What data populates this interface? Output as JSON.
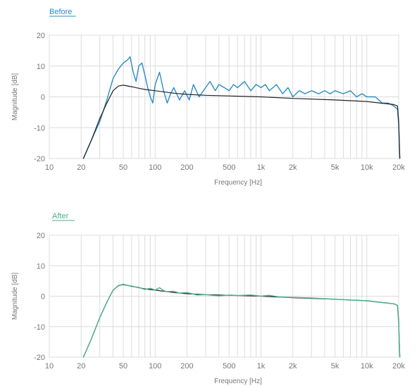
{
  "colors": {
    "before_series": "#2b8cc4",
    "after_series": "#4caf8a",
    "target_curve": "#222222",
    "grid": "#dcdcdc",
    "axis_text": "#777777"
  },
  "chart_data": [
    {
      "type": "line",
      "title": "Before",
      "xlabel": "Frequency [Hz]",
      "ylabel": "Magnitude [dB]",
      "xscale": "log",
      "xlim": [
        10,
        20000
      ],
      "ylim": [
        -20,
        20
      ],
      "xticks": [
        10,
        20,
        50,
        100,
        200,
        500,
        1000,
        2000,
        5000,
        10000,
        20000
      ],
      "xtick_labels": [
        "10",
        "20",
        "50",
        "100",
        "200",
        "500",
        "1k",
        "2k",
        "5k",
        "10k",
        "20k"
      ],
      "yticks": [
        20,
        10,
        0,
        -10,
        -20
      ],
      "ytick_labels": [
        "20",
        "10",
        "0",
        "-10",
        "-20"
      ],
      "grid": true,
      "series": [
        {
          "role": "measured",
          "color": "#2b8cc4",
          "x": [
            21,
            25,
            30,
            35,
            40,
            45,
            50,
            55,
            58,
            62,
            66,
            70,
            75,
            80,
            85,
            90,
            95,
            100,
            110,
            120,
            130,
            140,
            150,
            170,
            190,
            210,
            230,
            260,
            300,
            330,
            370,
            400,
            450,
            500,
            550,
            600,
            700,
            800,
            900,
            1000,
            1100,
            1200,
            1400,
            1600,
            1800,
            2000,
            2300,
            2600,
            3000,
            3500,
            4000,
            4500,
            5000,
            6000,
            7000,
            8000,
            9000,
            10000,
            12000,
            14000,
            16000,
            18000,
            19500,
            20000,
            20500
          ],
          "y": [
            -20,
            -14,
            -8,
            -1,
            6,
            9,
            11,
            12,
            13,
            8,
            5,
            10,
            11,
            7,
            3,
            0,
            -2,
            4,
            8,
            2,
            -2,
            1,
            3,
            -1,
            2,
            -1,
            4,
            0,
            3,
            5,
            2,
            4,
            3,
            2,
            4,
            3,
            5,
            2,
            4,
            3,
            4,
            2,
            4,
            1,
            3,
            0,
            2,
            1,
            2,
            1,
            2,
            1,
            2,
            1,
            2,
            0,
            1,
            0,
            0,
            -2,
            -2,
            -3,
            -4,
            -9,
            -20
          ]
        },
        {
          "role": "target",
          "color": "#222222",
          "x": [
            21,
            25,
            30,
            35,
            40,
            45,
            50,
            60,
            70,
            80,
            100,
            150,
            200,
            300,
            500,
            1000,
            2000,
            5000,
            10000,
            15000,
            18000,
            19500,
            20000,
            20500
          ],
          "y": [
            -20,
            -14,
            -7,
            -2,
            2,
            3.5,
            3.8,
            3.3,
            2.8,
            2.4,
            2,
            1.2,
            0.8,
            0.5,
            0.3,
            0,
            -0.5,
            -1,
            -1.5,
            -2.2,
            -2.5,
            -3,
            -8,
            -20
          ]
        }
      ]
    },
    {
      "type": "line",
      "title": "After",
      "xlabel": "Frequency [Hz]",
      "ylabel": "Magnitude [dB]",
      "xscale": "log",
      "xlim": [
        10,
        20000
      ],
      "ylim": [
        -20,
        20
      ],
      "xticks": [
        10,
        20,
        50,
        100,
        200,
        500,
        1000,
        2000,
        5000,
        10000,
        20000
      ],
      "xtick_labels": [
        "10",
        "20",
        "50",
        "100",
        "200",
        "500",
        "1k",
        "2k",
        "5k",
        "10k",
        "20k"
      ],
      "yticks": [
        20,
        10,
        0,
        -10,
        -20
      ],
      "ytick_labels": [
        "20",
        "10",
        "0",
        "-10",
        "-20"
      ],
      "grid": true,
      "series": [
        {
          "role": "measured",
          "color": "#4caf8a",
          "x": [
            21,
            25,
            30,
            35,
            40,
            45,
            50,
            60,
            70,
            80,
            90,
            100,
            110,
            120,
            130,
            150,
            170,
            200,
            250,
            300,
            400,
            500,
            600,
            800,
            1000,
            1200,
            1500,
            2000,
            3000,
            5000,
            7000,
            10000,
            15000,
            18000,
            19500,
            20000,
            20500
          ],
          "y": [
            -20,
            -14,
            -7,
            -2,
            2,
            3.4,
            3.9,
            3.2,
            2.9,
            2.2,
            2.6,
            2.0,
            2.8,
            1.8,
            1.5,
            1.6,
            1.0,
            1.2,
            0.4,
            0.5,
            0.1,
            0.4,
            0.2,
            0.4,
            0,
            0.3,
            -0.3,
            -0.4,
            -0.6,
            -1,
            -1.3,
            -1.5,
            -2.2,
            -2.5,
            -3,
            -9,
            -20
          ]
        },
        {
          "role": "target",
          "color": "#222222",
          "x": [
            21,
            25,
            30,
            35,
            40,
            45,
            50,
            60,
            70,
            80,
            100,
            150,
            200,
            300,
            500,
            1000,
            2000,
            5000,
            10000,
            15000,
            18000,
            19500,
            20000,
            20500
          ],
          "y": [
            -20,
            -14,
            -7,
            -2,
            2,
            3.5,
            3.8,
            3.3,
            2.8,
            2.4,
            2,
            1.2,
            0.8,
            0.5,
            0.3,
            0,
            -0.5,
            -1,
            -1.5,
            -2.2,
            -2.5,
            -3,
            -8,
            -20
          ]
        }
      ]
    }
  ]
}
